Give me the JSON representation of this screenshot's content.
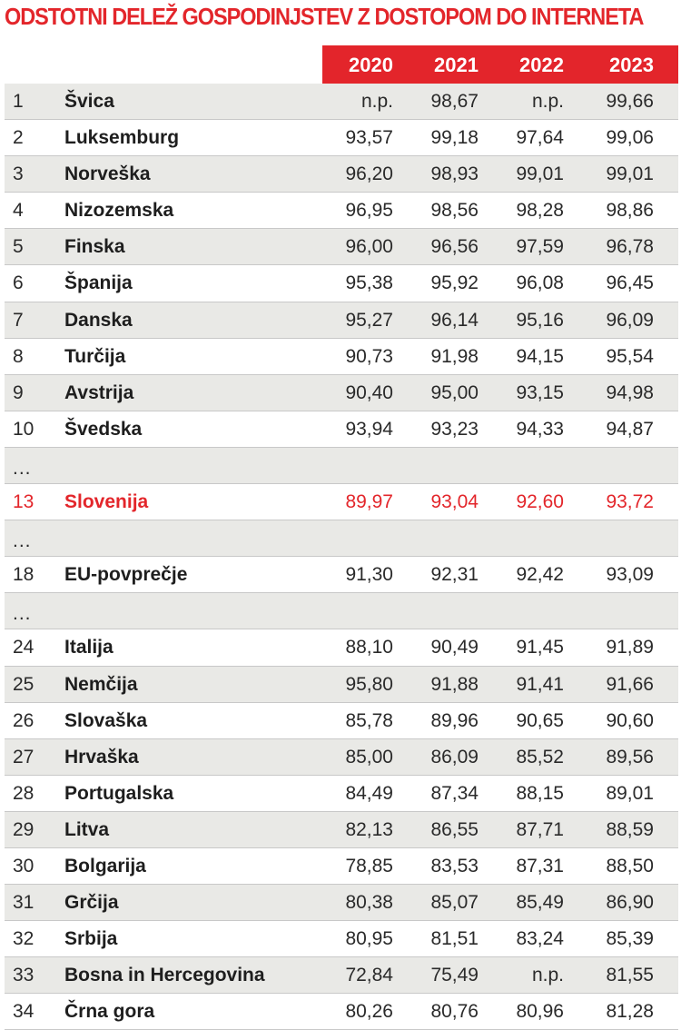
{
  "chart_data": {
    "type": "table",
    "title": "ODSTOTNI DELEŽ GOSPODINJSTEV Z DOSTOPOM DO INTERNETA",
    "columns": [
      "2020",
      "2021",
      "2022",
      "2023"
    ],
    "rows": [
      {
        "rank": "1",
        "country": "Švica",
        "values": [
          "n.p.",
          "98,67",
          "n.p.",
          "99,66"
        ],
        "shaded": true
      },
      {
        "rank": "2",
        "country": "Luksemburg",
        "values": [
          "93,57",
          "99,18",
          "97,64",
          "99,06"
        ],
        "shaded": false
      },
      {
        "rank": "3",
        "country": "Norveška",
        "values": [
          "96,20",
          "98,93",
          "99,01",
          "99,01"
        ],
        "shaded": true
      },
      {
        "rank": "4",
        "country": "Nizozemska",
        "values": [
          "96,95",
          "98,56",
          "98,28",
          "98,86"
        ],
        "shaded": false
      },
      {
        "rank": "5",
        "country": "Finska",
        "values": [
          "96,00",
          "96,56",
          "97,59",
          "96,78"
        ],
        "shaded": true
      },
      {
        "rank": "6",
        "country": "Španija",
        "values": [
          "95,38",
          "95,92",
          "96,08",
          "96,45"
        ],
        "shaded": false
      },
      {
        "rank": "7",
        "country": "Danska",
        "values": [
          "95,27",
          "96,14",
          "95,16",
          "96,09"
        ],
        "shaded": true
      },
      {
        "rank": "8",
        "country": "Turčija",
        "values": [
          "90,73",
          "91,98",
          "94,15",
          "95,54"
        ],
        "shaded": false
      },
      {
        "rank": "9",
        "country": "Avstrija",
        "values": [
          "90,40",
          "95,00",
          "93,15",
          "94,98"
        ],
        "shaded": true
      },
      {
        "rank": "10",
        "country": "Švedska",
        "values": [
          "93,94",
          "93,23",
          "94,33",
          "94,87"
        ],
        "shaded": false
      },
      {
        "rank": "...",
        "country": "",
        "values": [
          "",
          "",
          "",
          ""
        ],
        "shaded": true
      },
      {
        "rank": "13",
        "country": "Slovenija",
        "values": [
          "89,97",
          "93,04",
          "92,60",
          "93,72"
        ],
        "shaded": false,
        "highlight": true
      },
      {
        "rank": "...",
        "country": "",
        "values": [
          "",
          "",
          "",
          ""
        ],
        "shaded": true
      },
      {
        "rank": "18",
        "country": "EU-povprečje",
        "values": [
          "91,30",
          "92,31",
          "92,42",
          "93,09"
        ],
        "shaded": false
      },
      {
        "rank": "...",
        "country": "",
        "values": [
          "",
          "",
          "",
          ""
        ],
        "shaded": true
      },
      {
        "rank": "24",
        "country": "Italija",
        "values": [
          "88,10",
          "90,49",
          "91,45",
          "91,89"
        ],
        "shaded": false
      },
      {
        "rank": "25",
        "country": "Nemčija",
        "values": [
          "95,80",
          "91,88",
          "91,41",
          "91,66"
        ],
        "shaded": true
      },
      {
        "rank": "26",
        "country": "Slovaška",
        "values": [
          "85,78",
          "89,96",
          "90,65",
          "90,60"
        ],
        "shaded": false
      },
      {
        "rank": "27",
        "country": "Hrvaška",
        "values": [
          "85,00",
          "86,09",
          "85,52",
          "89,56"
        ],
        "shaded": true
      },
      {
        "rank": "28",
        "country": "Portugalska",
        "values": [
          "84,49",
          "87,34",
          "88,15",
          "89,01"
        ],
        "shaded": false
      },
      {
        "rank": "29",
        "country": "Litva",
        "values": [
          "82,13",
          "86,55",
          "87,71",
          "88,59"
        ],
        "shaded": true
      },
      {
        "rank": "30",
        "country": "Bolgarija",
        "values": [
          "78,85",
          "83,53",
          "87,31",
          "88,50"
        ],
        "shaded": false
      },
      {
        "rank": "31",
        "country": "Grčija",
        "values": [
          "80,38",
          "85,07",
          "85,49",
          "86,90"
        ],
        "shaded": true
      },
      {
        "rank": "32",
        "country": "Srbija",
        "values": [
          "80,95",
          "81,51",
          "83,24",
          "85,39"
        ],
        "shaded": false
      },
      {
        "rank": "33",
        "country": "Bosna in Hercegovina",
        "values": [
          "72,84",
          "75,49",
          "n.p.",
          "81,55"
        ],
        "shaded": true
      },
      {
        "rank": "34",
        "country": "Črna gora",
        "values": [
          "80,26",
          "80,76",
          "80,96",
          "81,28"
        ],
        "shaded": false
      }
    ]
  },
  "colors": {
    "accent": "#e3252b",
    "row_shade": "#e9e9e6",
    "text": "#1e1e1e",
    "header_text": "#ffffff"
  }
}
